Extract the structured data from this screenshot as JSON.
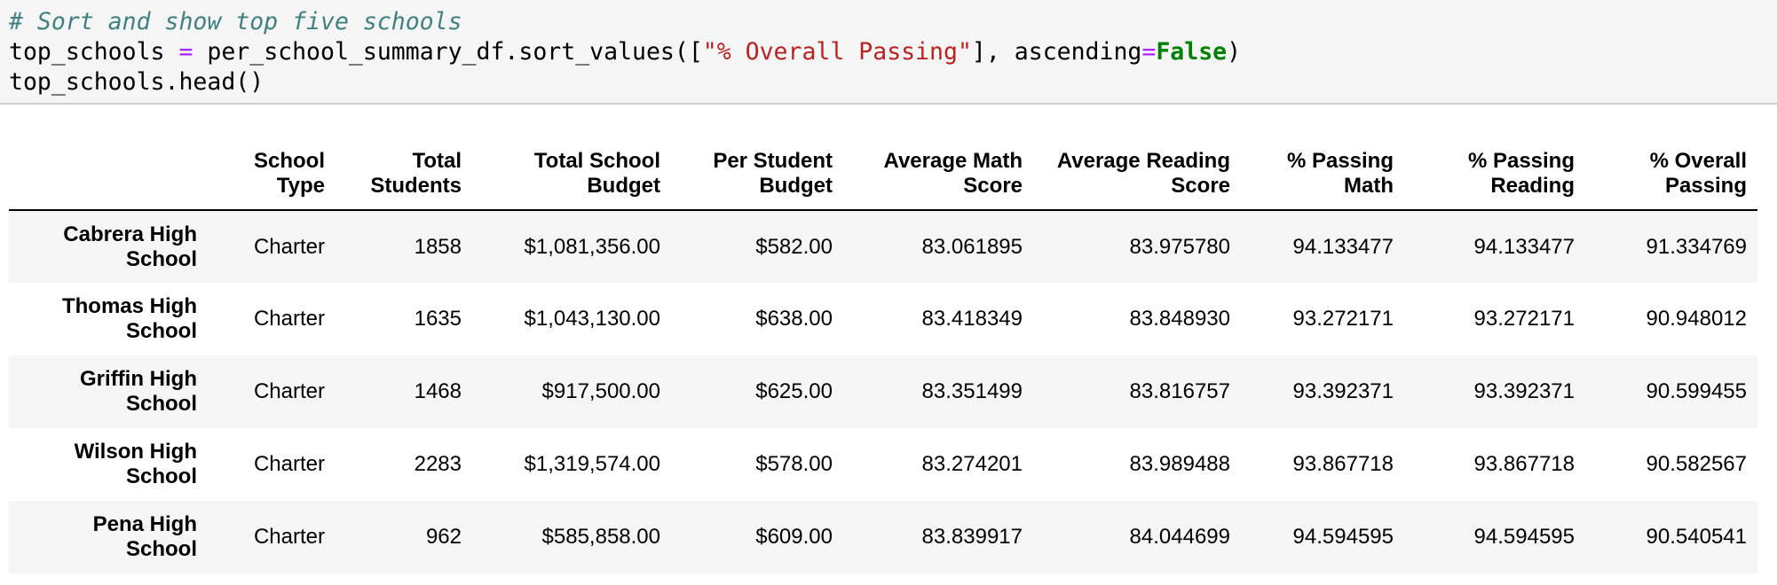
{
  "code": {
    "comment": "# Sort and show top five schools",
    "line2": {
      "var": "top_schools ",
      "eq": "=",
      "call": " per_school_summary_df.sort_values([",
      "str": "\"% Overall Passing\"",
      "mid": "], ascending",
      "eq2": "=",
      "kw": "False",
      "end": ")"
    },
    "line3": "top_schools.head()"
  },
  "table": {
    "columns": [
      {
        "line1": "",
        "line2": ""
      },
      {
        "line1": "School",
        "line2": "Type"
      },
      {
        "line1": "Total",
        "line2": "Students"
      },
      {
        "line1": "Total School",
        "line2": "Budget"
      },
      {
        "line1": "Per Student",
        "line2": "Budget"
      },
      {
        "line1": "Average Math",
        "line2": "Score"
      },
      {
        "line1": "Average Reading",
        "line2": "Score"
      },
      {
        "line1": "% Passing",
        "line2": "Math"
      },
      {
        "line1": "% Passing",
        "line2": "Reading"
      },
      {
        "line1": "% Overall",
        "line2": "Passing"
      }
    ],
    "rows": [
      {
        "name1": "Cabrera High",
        "name2": "School",
        "cells": [
          "Charter",
          "1858",
          "$1,081,356.00",
          "$582.00",
          "83.061895",
          "83.975780",
          "94.133477",
          "94.133477",
          "91.334769"
        ]
      },
      {
        "name1": "Thomas High",
        "name2": "School",
        "cells": [
          "Charter",
          "1635",
          "$1,043,130.00",
          "$638.00",
          "83.418349",
          "83.848930",
          "93.272171",
          "93.272171",
          "90.948012"
        ]
      },
      {
        "name1": "Griffin High",
        "name2": "School",
        "cells": [
          "Charter",
          "1468",
          "$917,500.00",
          "$625.00",
          "83.351499",
          "83.816757",
          "93.392371",
          "93.392371",
          "90.599455"
        ]
      },
      {
        "name1": "Wilson High",
        "name2": "School",
        "cells": [
          "Charter",
          "2283",
          "$1,319,574.00",
          "$578.00",
          "83.274201",
          "83.989488",
          "93.867718",
          "93.867718",
          "90.582567"
        ]
      },
      {
        "name1": "Pena High",
        "name2": "School",
        "cells": [
          "Charter",
          "962",
          "$585,858.00",
          "$609.00",
          "83.839917",
          "84.044699",
          "94.594595",
          "94.594595",
          "90.540541"
        ]
      }
    ]
  }
}
